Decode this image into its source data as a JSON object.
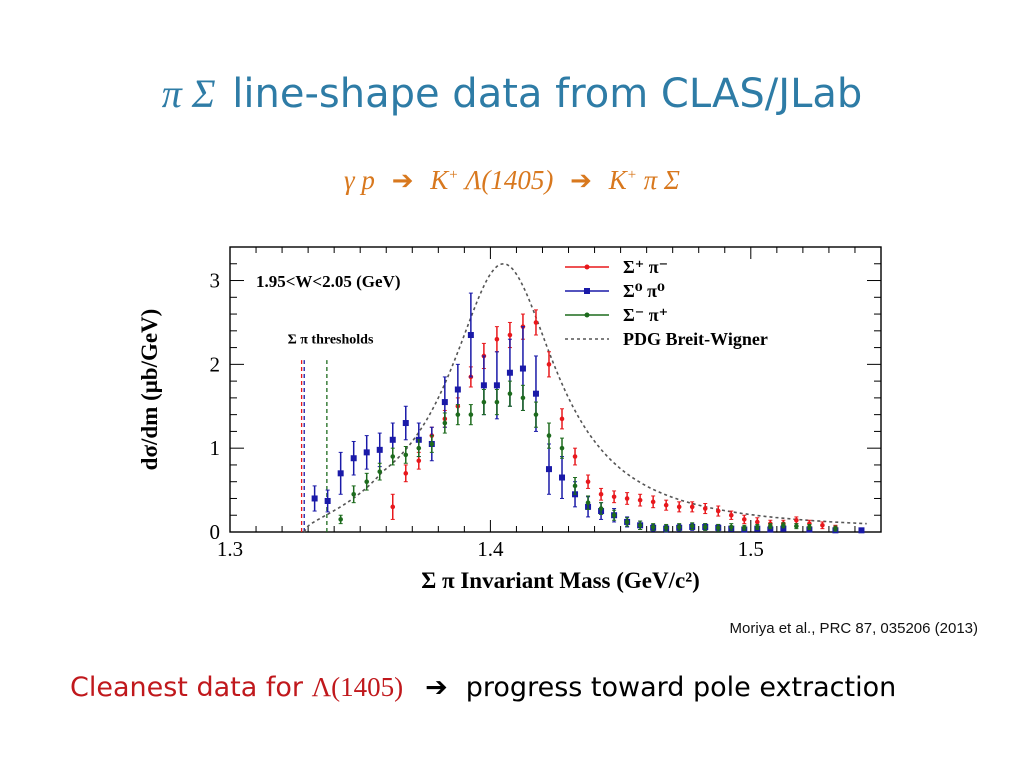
{
  "slide": {
    "title_symbols": "π Σ",
    "title_text": "line-shape data from CLAS/JLab",
    "reaction": {
      "gamma_p": "γ p",
      "arrow": "➔",
      "k_plus_1": "K",
      "plus_1": "+",
      "lambda": "Λ(1405)",
      "k_plus_2": "K",
      "plus_2": "+",
      "pi_sigma": "π Σ"
    },
    "citation": "Moriya et al., PRC 87, 035206 (2013)",
    "conclusion": {
      "lead": "Cleanest data for ",
      "lambda": "Λ(1405)",
      "arrow": "➔",
      "tail": "progress toward pole extraction"
    }
  },
  "colors": {
    "title": "#2e7ca6",
    "reaction": "#d8781e",
    "conclusion_lead": "#c0181c",
    "sigma_plus_pi_minus": "#e8181c",
    "sigma0_pi0": "#1a1aa8",
    "sigma_minus_pi_plus": "#1d6b1d",
    "breit_wigner": "#555555"
  },
  "chart_data": {
    "type": "scatter",
    "annotation": "1.95<W<2.05 (GeV)",
    "thresholds_label": "Σ π thresholds",
    "xlabel": "Σ π Invariant Mass (GeV/c²)",
    "ylabel": "dσ/dm (μb/GeV)",
    "xlim": [
      1.3,
      1.55
    ],
    "ylim": [
      0,
      3.4
    ],
    "xticks": [
      1.3,
      1.4,
      1.5
    ],
    "yticks": [
      0,
      1,
      2,
      3
    ],
    "legend_position": "top-right",
    "thresholds": [
      {
        "x": 1.3275,
        "series": "Σ⁺ π⁻"
      },
      {
        "x": 1.3285,
        "series": "Σ⁰ π⁰"
      },
      {
        "x": 1.3372,
        "series": "Σ⁻ π⁺"
      }
    ],
    "series": [
      {
        "name": "Σ⁺ π⁻",
        "color_key": "sigma_plus_pi_minus",
        "marker": "small-dot",
        "points": [
          [
            1.3625,
            0.3,
            0.15
          ],
          [
            1.3675,
            0.7,
            0.1
          ],
          [
            1.3725,
            0.85,
            0.1
          ],
          [
            1.3775,
            1.15,
            0.1
          ],
          [
            1.3825,
            1.35,
            0.1
          ],
          [
            1.3875,
            1.5,
            0.1
          ],
          [
            1.3925,
            1.85,
            0.12
          ],
          [
            1.3975,
            2.1,
            0.15
          ],
          [
            1.4025,
            2.3,
            0.15
          ],
          [
            1.4075,
            2.35,
            0.15
          ],
          [
            1.4125,
            2.45,
            0.15
          ],
          [
            1.4175,
            2.5,
            0.15
          ],
          [
            1.4225,
            2.0,
            0.15
          ],
          [
            1.4275,
            1.35,
            0.12
          ],
          [
            1.4325,
            0.9,
            0.1
          ],
          [
            1.4375,
            0.6,
            0.08
          ],
          [
            1.4425,
            0.45,
            0.07
          ],
          [
            1.4475,
            0.42,
            0.07
          ],
          [
            1.4525,
            0.4,
            0.07
          ],
          [
            1.4575,
            0.38,
            0.07
          ],
          [
            1.4625,
            0.36,
            0.07
          ],
          [
            1.4675,
            0.32,
            0.06
          ],
          [
            1.4725,
            0.3,
            0.06
          ],
          [
            1.4775,
            0.3,
            0.06
          ],
          [
            1.4825,
            0.28,
            0.06
          ],
          [
            1.4875,
            0.25,
            0.06
          ],
          [
            1.4925,
            0.2,
            0.05
          ],
          [
            1.4975,
            0.15,
            0.05
          ],
          [
            1.5025,
            0.12,
            0.05
          ],
          [
            1.5075,
            0.1,
            0.04
          ],
          [
            1.5125,
            0.1,
            0.04
          ],
          [
            1.5175,
            0.14,
            0.04
          ],
          [
            1.5225,
            0.1,
            0.04
          ],
          [
            1.5275,
            0.08,
            0.04
          ],
          [
            1.5325,
            0.05,
            0.03
          ]
        ]
      },
      {
        "name": "Σ⁰ π⁰",
        "color_key": "sigma0_pi0",
        "marker": "square",
        "points": [
          [
            1.3325,
            0.4,
            0.15
          ],
          [
            1.3375,
            0.37,
            0.13
          ],
          [
            1.3425,
            0.7,
            0.25
          ],
          [
            1.3475,
            0.88,
            0.2
          ],
          [
            1.3525,
            0.95,
            0.2
          ],
          [
            1.3575,
            0.98,
            0.2
          ],
          [
            1.3625,
            1.1,
            0.2
          ],
          [
            1.3675,
            1.3,
            0.2
          ],
          [
            1.3725,
            1.1,
            0.2
          ],
          [
            1.3775,
            1.05,
            0.2
          ],
          [
            1.3825,
            1.55,
            0.3
          ],
          [
            1.3875,
            1.7,
            0.3
          ],
          [
            1.3925,
            2.35,
            0.5
          ],
          [
            1.3975,
            1.75,
            0.35
          ],
          [
            1.4025,
            1.75,
            0.4
          ],
          [
            1.4075,
            1.9,
            0.4
          ],
          [
            1.4125,
            1.95,
            0.5
          ],
          [
            1.4175,
            1.65,
            0.45
          ],
          [
            1.4225,
            0.75,
            0.3
          ],
          [
            1.4275,
            0.65,
            0.25
          ],
          [
            1.4325,
            0.45,
            0.15
          ],
          [
            1.4375,
            0.3,
            0.12
          ],
          [
            1.4425,
            0.25,
            0.1
          ],
          [
            1.4475,
            0.2,
            0.08
          ],
          [
            1.4525,
            0.12,
            0.06
          ],
          [
            1.4575,
            0.08,
            0.05
          ],
          [
            1.4625,
            0.05,
            0.04
          ],
          [
            1.4675,
            0.04,
            0.04
          ],
          [
            1.4725,
            0.05,
            0.04
          ],
          [
            1.4775,
            0.06,
            0.04
          ],
          [
            1.4825,
            0.06,
            0.04
          ],
          [
            1.4875,
            0.05,
            0.04
          ],
          [
            1.4925,
            0.04,
            0.03
          ],
          [
            1.4975,
            0.03,
            0.03
          ],
          [
            1.5025,
            0.04,
            0.03
          ],
          [
            1.5075,
            0.03,
            0.03
          ],
          [
            1.5125,
            0.04,
            0.03
          ],
          [
            1.5225,
            0.03,
            0.03
          ],
          [
            1.5325,
            0.02,
            0.02
          ],
          [
            1.5425,
            0.02,
            0.02
          ]
        ]
      },
      {
        "name": "Σ⁻ π⁺",
        "color_key": "sigma_minus_pi_plus",
        "marker": "small-dot",
        "points": [
          [
            1.3425,
            0.15,
            0.05
          ],
          [
            1.3475,
            0.45,
            0.1
          ],
          [
            1.3525,
            0.6,
            0.1
          ],
          [
            1.3575,
            0.72,
            0.1
          ],
          [
            1.3625,
            0.9,
            0.1
          ],
          [
            1.3675,
            0.92,
            0.1
          ],
          [
            1.3725,
            1.0,
            0.1
          ],
          [
            1.3775,
            1.05,
            0.1
          ],
          [
            1.3825,
            1.3,
            0.12
          ],
          [
            1.3875,
            1.4,
            0.12
          ],
          [
            1.3925,
            1.4,
            0.12
          ],
          [
            1.3975,
            1.55,
            0.15
          ],
          [
            1.4025,
            1.55,
            0.15
          ],
          [
            1.4075,
            1.65,
            0.15
          ],
          [
            1.4125,
            1.6,
            0.15
          ],
          [
            1.4175,
            1.4,
            0.15
          ],
          [
            1.4225,
            1.15,
            0.15
          ],
          [
            1.4275,
            1.0,
            0.12
          ],
          [
            1.4325,
            0.55,
            0.1
          ],
          [
            1.4375,
            0.35,
            0.08
          ],
          [
            1.4425,
            0.28,
            0.07
          ],
          [
            1.4475,
            0.2,
            0.06
          ],
          [
            1.4525,
            0.12,
            0.05
          ],
          [
            1.4575,
            0.08,
            0.05
          ],
          [
            1.4625,
            0.06,
            0.04
          ],
          [
            1.4675,
            0.05,
            0.04
          ],
          [
            1.4725,
            0.06,
            0.04
          ],
          [
            1.4775,
            0.07,
            0.04
          ],
          [
            1.4825,
            0.06,
            0.04
          ],
          [
            1.4875,
            0.05,
            0.04
          ],
          [
            1.4925,
            0.06,
            0.04
          ],
          [
            1.4975,
            0.05,
            0.03
          ],
          [
            1.5025,
            0.06,
            0.03
          ],
          [
            1.5075,
            0.07,
            0.03
          ],
          [
            1.5125,
            0.08,
            0.03
          ],
          [
            1.5175,
            0.07,
            0.03
          ],
          [
            1.5225,
            0.06,
            0.03
          ],
          [
            1.5325,
            0.04,
            0.03
          ]
        ]
      },
      {
        "name": "PDG Breit-Wigner",
        "color_key": "breit_wigner",
        "style": "dashed-curve",
        "peak_mass": 1.405,
        "peak_value": 3.2,
        "width": 0.05,
        "x_range": [
          1.3285,
          1.545
        ]
      }
    ]
  }
}
